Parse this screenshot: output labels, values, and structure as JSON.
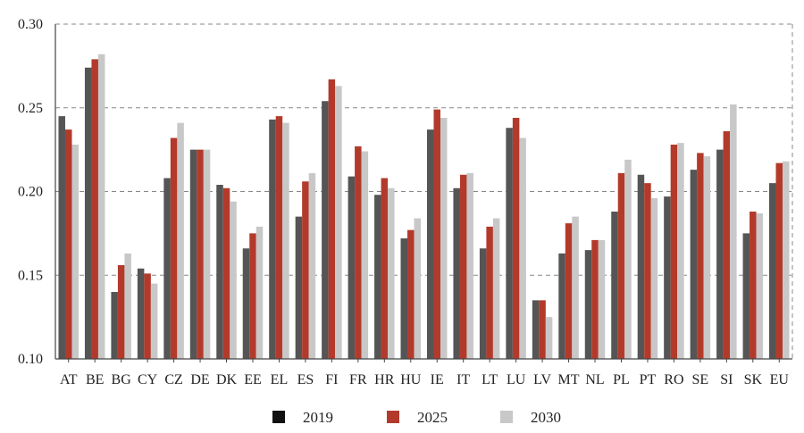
{
  "chart_data": {
    "type": "bar",
    "categories": [
      "AT",
      "BE",
      "BG",
      "CY",
      "CZ",
      "DE",
      "DK",
      "EE",
      "EL",
      "ES",
      "FI",
      "FR",
      "HR",
      "HU",
      "IE",
      "IT",
      "LT",
      "LU",
      "LV",
      "MT",
      "NL",
      "PL",
      "PT",
      "RO",
      "SE",
      "SI",
      "SK",
      "EU"
    ],
    "series": [
      {
        "name": "2019",
        "color": "#555555",
        "legend_color": "#111111",
        "values": [
          0.245,
          0.274,
          0.14,
          0.154,
          0.208,
          0.225,
          0.204,
          0.166,
          0.243,
          0.185,
          0.254,
          0.209,
          0.198,
          0.172,
          0.237,
          0.202,
          0.166,
          0.238,
          0.135,
          0.163,
          0.165,
          0.188,
          0.21,
          0.197,
          0.213,
          0.225,
          0.175,
          0.205
        ]
      },
      {
        "name": "2025",
        "color": "#b33a2b",
        "legend_color": "#b33a2b",
        "values": [
          0.237,
          0.279,
          0.156,
          0.151,
          0.232,
          0.225,
          0.202,
          0.175,
          0.245,
          0.206,
          0.267,
          0.227,
          0.208,
          0.177,
          0.249,
          0.21,
          0.179,
          0.244,
          0.135,
          0.181,
          0.171,
          0.211,
          0.205,
          0.228,
          0.223,
          0.236,
          0.188,
          0.217
        ]
      },
      {
        "name": "2030",
        "color": "#c8c8c8",
        "legend_color": "#c8c8c8",
        "values": [
          0.228,
          0.282,
          0.163,
          0.145,
          0.241,
          0.225,
          0.194,
          0.179,
          0.241,
          0.211,
          0.263,
          0.224,
          0.202,
          0.184,
          0.244,
          0.211,
          0.184,
          0.232,
          0.125,
          0.185,
          0.171,
          0.219,
          0.196,
          0.229,
          0.221,
          0.252,
          0.187,
          0.218
        ]
      }
    ],
    "yticks": [
      "0.10",
      "0.15",
      "0.20",
      "0.25",
      "0.30"
    ],
    "ylim": [
      0.1,
      0.3
    ],
    "grid": true,
    "grid_style": "dashed horizontal",
    "legend_position": "bottom-center"
  }
}
